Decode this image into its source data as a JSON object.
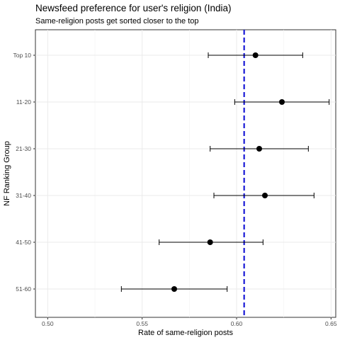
{
  "chart_data": {
    "type": "scatter",
    "title": "Newsfeed preference for user's religion (India)",
    "subtitle": "Same-religion posts get sorted closer to the top",
    "xlabel": "Rate of same-religion posts",
    "ylabel": "NF Ranking Group",
    "xlim": [
      0.4935,
      0.6525
    ],
    "x_ticks": [
      0.5,
      0.55,
      0.6,
      0.65
    ],
    "x_tick_labels": [
      "0.50",
      "0.55",
      "0.60",
      "0.65"
    ],
    "categories": [
      "Top 10",
      "11-20",
      "21-30",
      "31-40",
      "41-50",
      "51-60"
    ],
    "points": [
      {
        "group": "Top 10",
        "x": 0.61,
        "lo": 0.585,
        "hi": 0.635
      },
      {
        "group": "11-20",
        "x": 0.624,
        "lo": 0.599,
        "hi": 0.649
      },
      {
        "group": "21-30",
        "x": 0.612,
        "lo": 0.586,
        "hi": 0.638
      },
      {
        "group": "31-40",
        "x": 0.615,
        "lo": 0.588,
        "hi": 0.641
      },
      {
        "group": "41-50",
        "x": 0.586,
        "lo": 0.559,
        "hi": 0.614
      },
      {
        "group": "51-60",
        "x": 0.567,
        "lo": 0.539,
        "hi": 0.595
      }
    ],
    "reference_line": {
      "x": 0.604,
      "style": "dashed",
      "color": "#1a1ad6"
    },
    "grid": true,
    "legend": "none"
  }
}
